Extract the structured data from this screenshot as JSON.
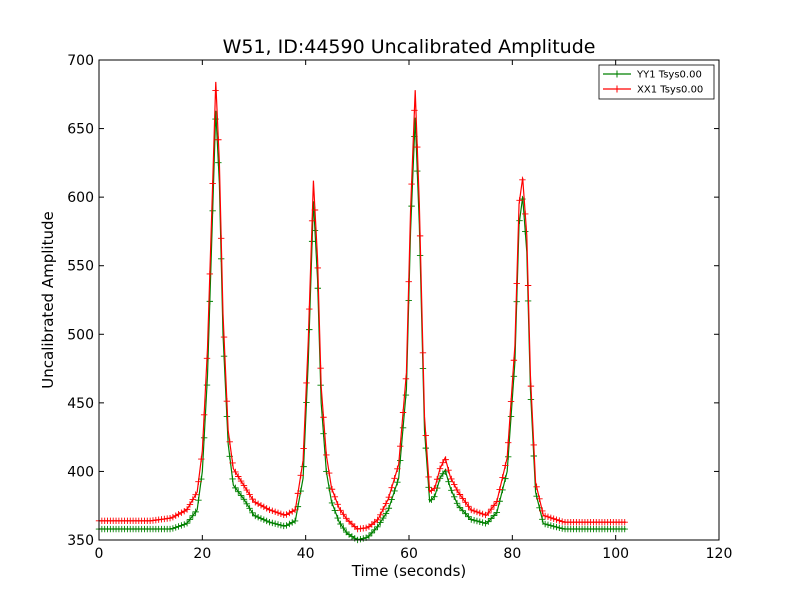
{
  "chart_data": {
    "type": "line",
    "title": "W51, ID:44590 Uncalibrated Amplitude",
    "xlabel": "Time (seconds)",
    "ylabel": "Uncalibrated Amplitude",
    "xlim": [
      0,
      120
    ],
    "ylim": [
      350,
      700
    ],
    "xticks": [
      0,
      20,
      40,
      60,
      80,
      100,
      120
    ],
    "yticks": [
      350,
      400,
      450,
      500,
      550,
      600,
      650,
      700
    ],
    "grid": false,
    "legend_position": "top-right",
    "series": [
      {
        "name": "YY1 Tsys0.00",
        "color": "#008000",
        "marker": "+",
        "x": [
          0,
          5,
          10,
          14,
          17,
          19,
          20,
          21,
          22,
          22.6,
          23.3,
          24,
          25,
          26,
          28,
          30,
          33,
          36,
          38,
          39.5,
          40.5,
          41.5,
          42.3,
          43,
          44,
          45,
          46.5,
          48,
          50,
          52,
          54,
          56,
          58,
          59.5,
          60.3,
          61.2,
          62,
          63,
          64,
          65,
          66,
          67,
          68,
          69.5,
          72,
          75,
          77,
          79,
          80.5,
          81.3,
          82,
          82.8,
          83.5,
          84.5,
          86,
          90,
          95,
          100,
          102
        ],
        "values": [
          358,
          358,
          358,
          358,
          362,
          372,
          400,
          470,
          590,
          663,
          610,
          500,
          420,
          390,
          380,
          368,
          363,
          360,
          364,
          395,
          480,
          597,
          540,
          450,
          400,
          378,
          363,
          355,
          350,
          352,
          360,
          372,
          395,
          460,
          575,
          658,
          580,
          430,
          378,
          382,
          395,
          401,
          388,
          375,
          365,
          362,
          370,
          400,
          480,
          580,
          600,
          560,
          460,
          385,
          362,
          358,
          358,
          358,
          358
        ]
      },
      {
        "name": "XX1 Tsys0.00",
        "color": "#ff0000",
        "marker": "+",
        "x": [
          0,
          5,
          10,
          14,
          17,
          19,
          20,
          21,
          22,
          22.6,
          23.3,
          24,
          25,
          26,
          28,
          30,
          33,
          36,
          38,
          39.5,
          40.5,
          41.5,
          42.3,
          43,
          44,
          45,
          46.5,
          48,
          50,
          52,
          54,
          56,
          58,
          59.5,
          60.3,
          61.2,
          62,
          63,
          64,
          65,
          66,
          67,
          68,
          69.5,
          72,
          75,
          77,
          79,
          80.5,
          81.3,
          82,
          82.8,
          83.5,
          84.5,
          86,
          90,
          95,
          100,
          102
        ],
        "values": [
          364,
          364,
          364,
          366,
          372,
          385,
          415,
          490,
          610,
          684,
          625,
          515,
          430,
          402,
          390,
          378,
          372,
          368,
          372,
          408,
          495,
          612,
          555,
          462,
          412,
          388,
          373,
          365,
          358,
          359,
          365,
          380,
          405,
          472,
          590,
          678,
          595,
          440,
          385,
          388,
          402,
          410,
          396,
          385,
          372,
          368,
          378,
          410,
          492,
          595,
          614,
          572,
          470,
          392,
          368,
          363,
          363,
          363,
          363
        ]
      }
    ]
  }
}
